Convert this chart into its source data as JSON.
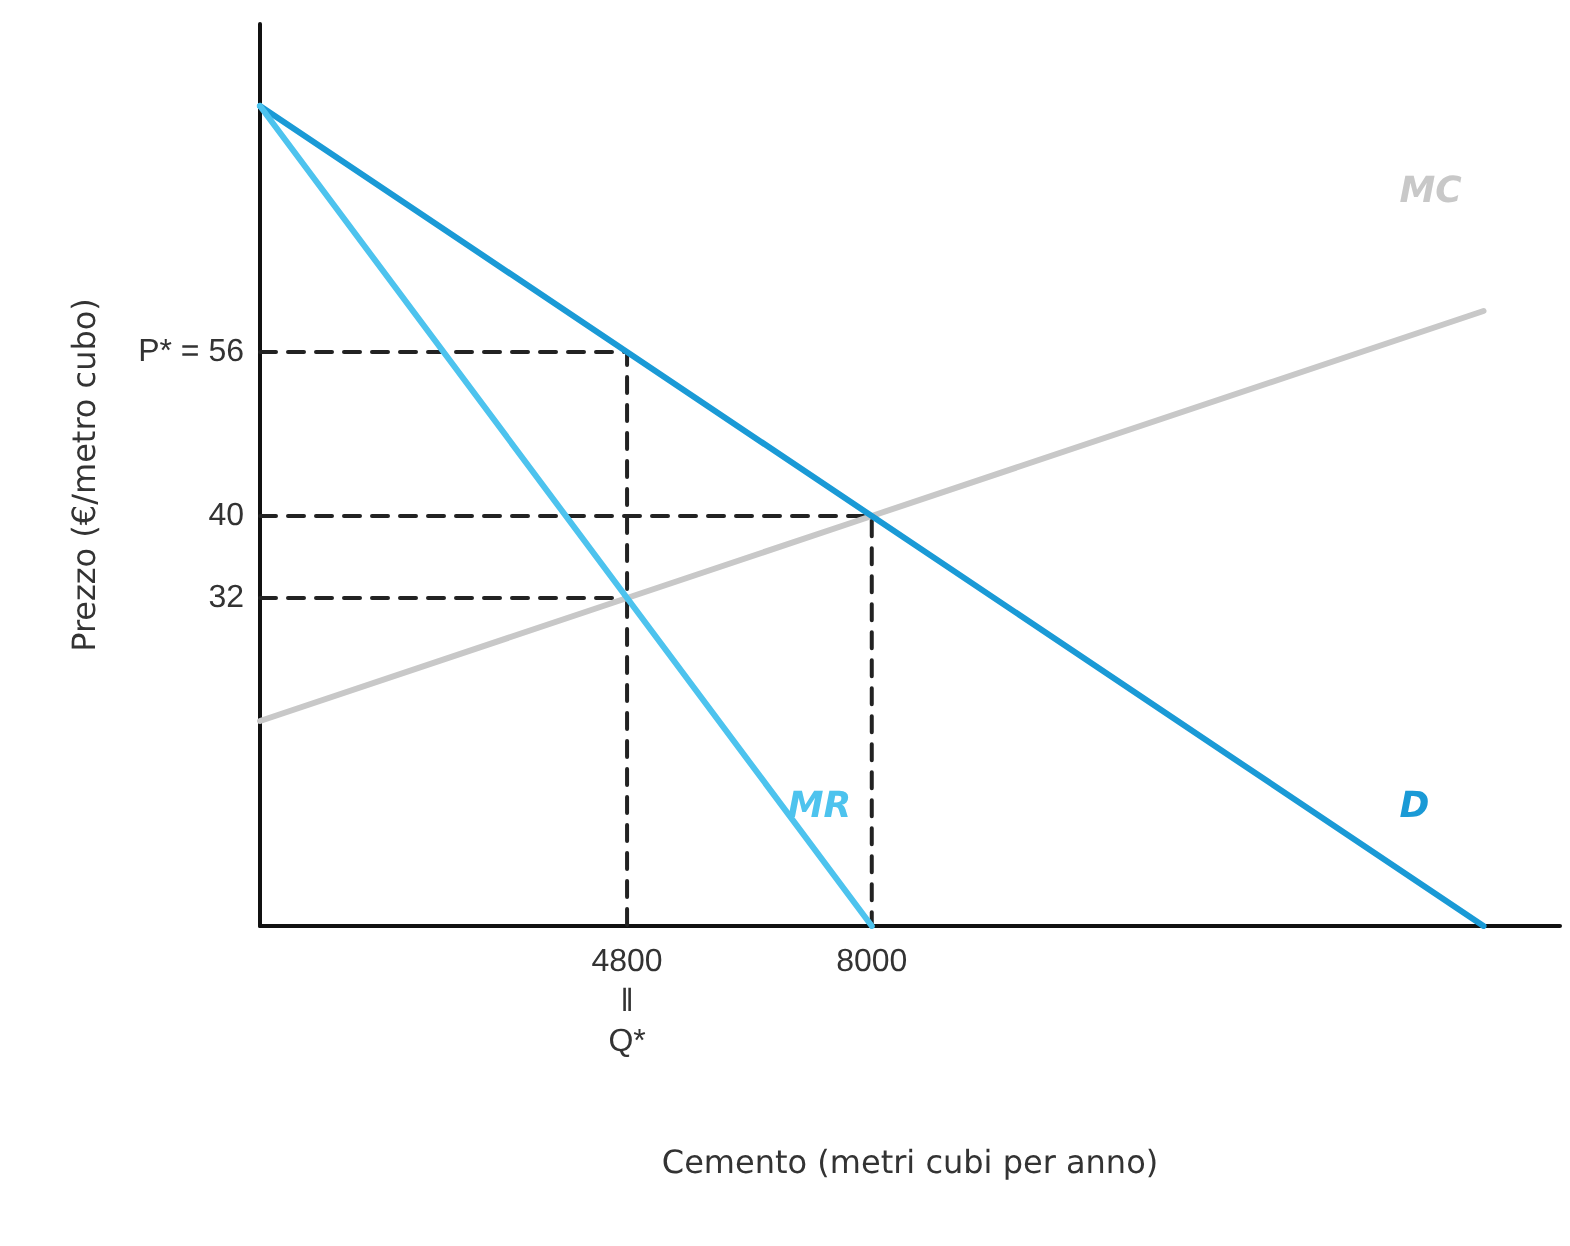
{
  "chart_data": {
    "type": "line",
    "xlabel": "Cemento (metri cubi per anno)",
    "ylabel": "Prezzo (€/metro cubo)",
    "xlim": [
      0,
      17000
    ],
    "ylim": [
      0,
      88
    ],
    "xticks": [
      {
        "value": 4800,
        "label": "4800\n‖\nQ*"
      },
      8000
    ],
    "yticks": [
      32,
      40,
      {
        "value": 56,
        "label": "P* = 56"
      }
    ],
    "grid": false,
    "marker": "none",
    "line_style": "solid",
    "series": [
      {
        "name": "MC",
        "color": "#c8c8c8",
        "x": [
          0,
          4800,
          8000,
          16000
        ],
        "values": [
          20,
          32,
          40,
          60
        ]
      },
      {
        "name": "D",
        "color": "#1a9ad6",
        "x": [
          0,
          4800,
          8000,
          16000
        ],
        "values": [
          80,
          56,
          40,
          0
        ]
      },
      {
        "name": "MR",
        "color": "#4dc3ee",
        "x": [
          0,
          4800,
          8000
        ],
        "values": [
          80,
          32,
          0
        ]
      },
      {
        "color": "#222222",
        "line_style": "dashed",
        "x": [
          0,
          4800,
          4800
        ],
        "values": [
          56,
          56,
          0
        ]
      },
      {
        "color": "#222222",
        "line_style": "dashed",
        "x": [
          0,
          8000,
          8000
        ],
        "values": [
          40,
          40,
          0
        ]
      },
      {
        "color": "#222222",
        "line_style": "dashed",
        "x": [
          0,
          4800
        ],
        "values": [
          32,
          32
        ]
      }
    ]
  }
}
